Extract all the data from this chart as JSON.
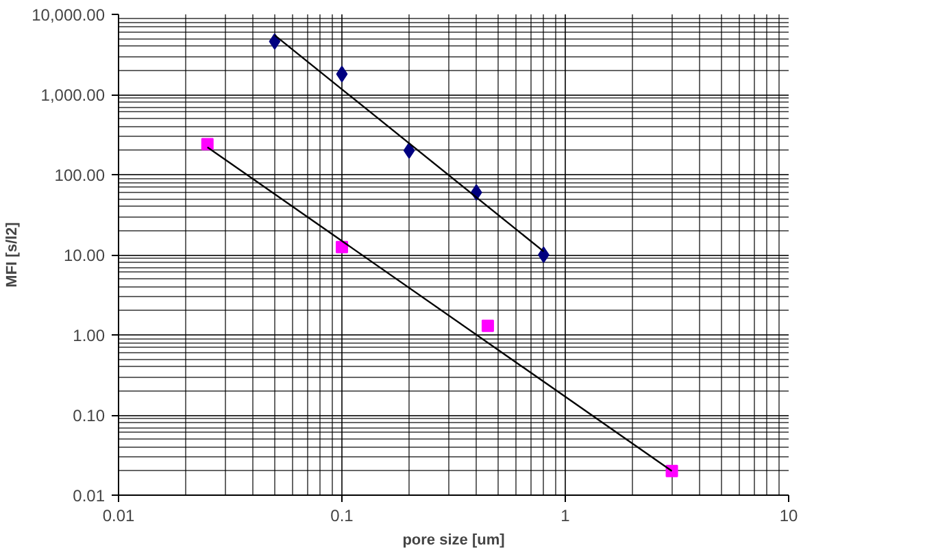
{
  "chart_data": {
    "type": "scatter",
    "xlabel": "pore size [um]",
    "ylabel": "MFI [s/l2]",
    "log": "xy",
    "grid": true,
    "xlim": [
      0.01,
      10
    ],
    "ylim": [
      0.01,
      10000
    ],
    "xticks": [
      0.01,
      0.1,
      1,
      10
    ],
    "yticks": [
      0.01,
      {
        "value": 0.1,
        "label": "0.10"
      },
      {
        "value": 1,
        "label": "1.00"
      },
      {
        "value": 10,
        "label": "10.00"
      },
      {
        "value": 100,
        "label": "100.00"
      },
      {
        "value": 1000,
        "label": "1,000.00"
      },
      {
        "value": 10000,
        "label": "10,000.00"
      }
    ],
    "series": [
      {
        "color": "#000080",
        "marker": "diamond",
        "x": [
          0.05,
          0.1,
          0.2,
          0.4,
          0.8
        ],
        "values": [
          4600,
          1800,
          200,
          60,
          10
        ]
      },
      {
        "color": "#ff00ff",
        "marker": "square",
        "x": [
          0.025,
          0.1,
          0.45,
          3
        ],
        "values": [
          240,
          12.5,
          1.3,
          0.02
        ]
      },
      {
        "type": "line",
        "color": "#000000",
        "x": [
          0.05,
          0.8
        ],
        "values": [
          5500,
          11
        ]
      },
      {
        "type": "line",
        "color": "#000000",
        "x": [
          0.025,
          3
        ],
        "values": [
          220,
          0.02
        ]
      }
    ]
  }
}
